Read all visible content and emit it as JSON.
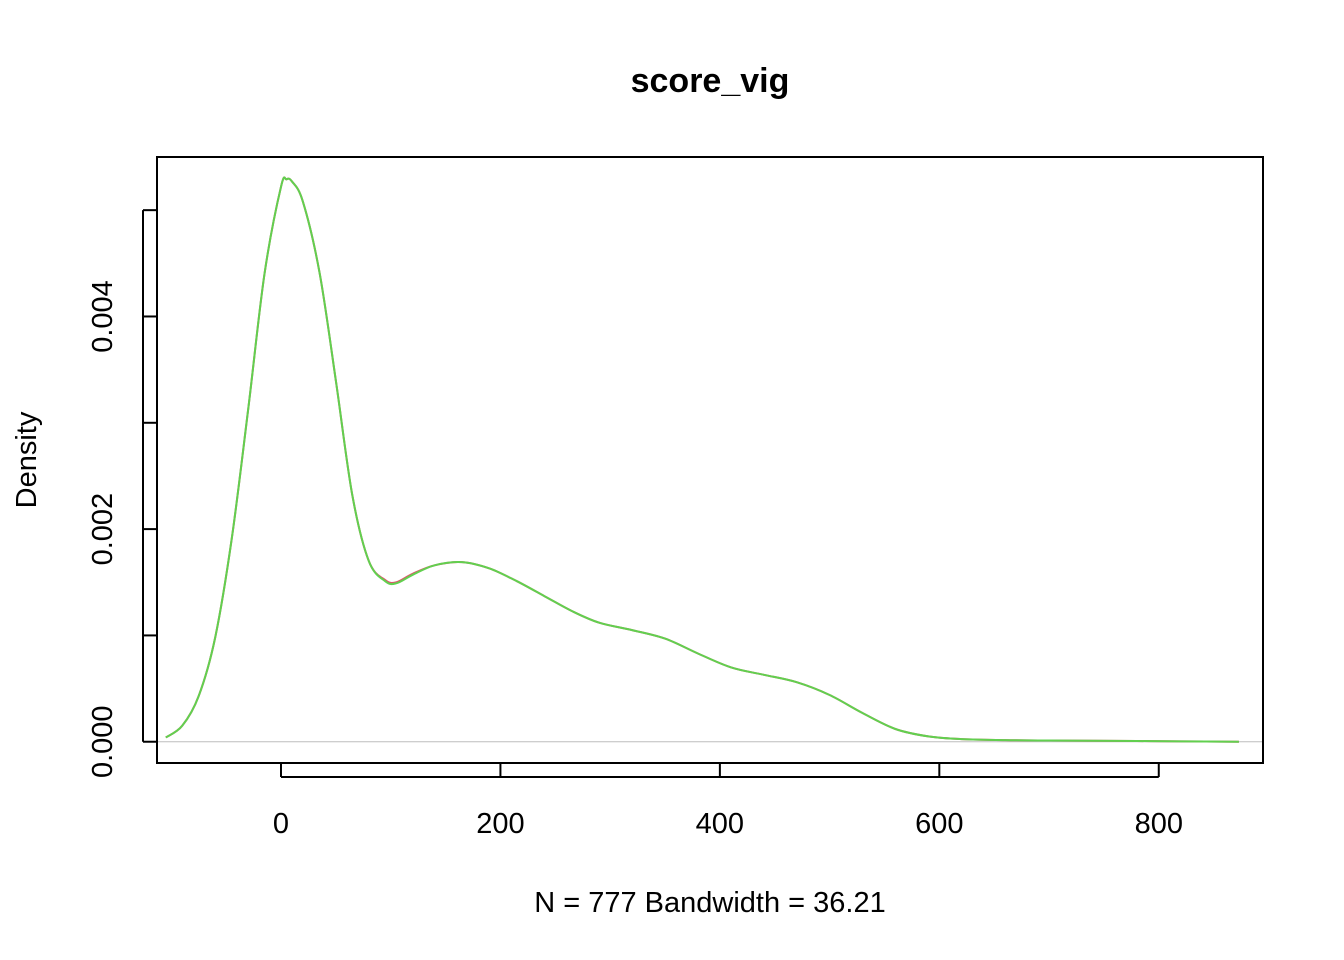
{
  "chart_data": {
    "type": "line",
    "title": "score_vig",
    "xlabel": "N = 777   Bandwidth = 36.21",
    "ylabel": "Density",
    "xlim": [
      -113,
      895
    ],
    "ylim": [
      -0.0002,
      0.0055
    ],
    "x_ticks": [
      0,
      200,
      400,
      600,
      800
    ],
    "y_ticks": [
      0.0,
      0.001,
      0.002,
      0.003,
      0.004,
      0.005
    ],
    "y_tick_labels": [
      "0.000",
      "",
      "0.002",
      "",
      "0.004",
      ""
    ],
    "grid": false,
    "baseline": 0,
    "colors": {
      "series_a": "#DF536B",
      "series_b": "#61D04F",
      "baseline": "#BEBEBE",
      "axis": "#000000"
    },
    "series": [
      {
        "x": [
          -105,
          -90,
          -75,
          -60,
          -45,
          -30,
          -15,
          0,
          5,
          10,
          20,
          35,
          50,
          65,
          80,
          95,
          105,
          120,
          140,
          165,
          190,
          215,
          240,
          265,
          290,
          320,
          350,
          380,
          410,
          440,
          470,
          500,
          530,
          560,
          590,
          620,
          660,
          700,
          740,
          780,
          820,
          873
        ],
        "y": [
          4e-05,
          0.00015,
          0.00043,
          0.00098,
          0.0019,
          0.00312,
          0.0044,
          0.00522,
          0.00529,
          0.00527,
          0.00508,
          0.00442,
          0.0034,
          0.00232,
          0.0017,
          0.00152,
          0.0015,
          0.00158,
          0.00166,
          0.00169,
          0.00163,
          0.00151,
          0.00137,
          0.00123,
          0.00112,
          0.00105,
          0.00097,
          0.00083,
          0.0007,
          0.00063,
          0.00056,
          0.00044,
          0.00027,
          0.00012,
          5e-05,
          2.5e-05,
          1.5e-05,
          1.2e-05,
          1e-05,
          7e-06,
          3e-06,
          0.0
        ]
      },
      {
        "x": [
          -105,
          -90,
          -75,
          -60,
          -45,
          -30,
          -15,
          0,
          5,
          10,
          20,
          35,
          50,
          65,
          80,
          95,
          105,
          120,
          140,
          165,
          190,
          215,
          240,
          265,
          290,
          320,
          350,
          380,
          410,
          440,
          470,
          500,
          530,
          560,
          590,
          620,
          660,
          700,
          740,
          780,
          820,
          873
        ],
        "y": [
          4e-05,
          0.00015,
          0.00043,
          0.00098,
          0.0019,
          0.00312,
          0.0044,
          0.00522,
          0.00529,
          0.00527,
          0.00508,
          0.00442,
          0.0034,
          0.00232,
          0.0017,
          0.00151,
          0.00149,
          0.00157,
          0.00166,
          0.00169,
          0.00163,
          0.00151,
          0.00137,
          0.00123,
          0.00112,
          0.00105,
          0.00097,
          0.00083,
          0.0007,
          0.00063,
          0.00056,
          0.00044,
          0.00027,
          0.00012,
          5e-05,
          2.5e-05,
          1.5e-05,
          1.2e-05,
          1e-05,
          7e-06,
          3e-06,
          0.0
        ]
      }
    ]
  }
}
